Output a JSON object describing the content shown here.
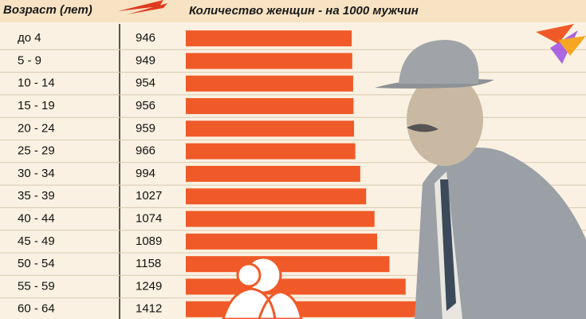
{
  "chart_data": {
    "type": "bar",
    "orientation": "horizontal",
    "category_header": "Возраст (лет)",
    "value_header": "Количество женщин - на 1000 мужчин",
    "categories": [
      "до 4",
      "5 - 9",
      "10 - 14",
      "15 - 19",
      "20 - 24",
      "25 - 29",
      "30 - 34",
      "35 - 39",
      "40 - 44",
      "45 - 49",
      "50 - 54",
      "55 - 59",
      "60 - 64"
    ],
    "values": [
      946,
      949,
      954,
      956,
      959,
      966,
      994,
      1027,
      1074,
      1089,
      1158,
      1249,
      1412
    ],
    "color": "#f05a28"
  }
}
